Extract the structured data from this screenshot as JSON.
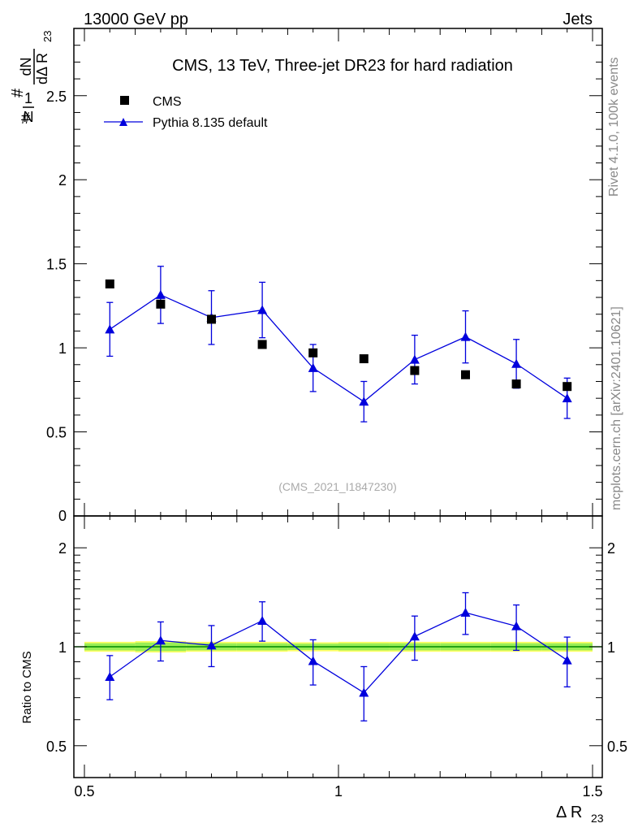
{
  "header": {
    "left": "13000 GeV pp",
    "right": "Jets"
  },
  "side_labels": {
    "rivet": "Rivet 4.1.0,  100k events",
    "mcplots": "mcplots.cern.ch [arXiv:2401.10621]"
  },
  "colors": {
    "mc": "#0000dd",
    "data": "#000000",
    "band_outer": "#ffff66",
    "band_inner": "#99ee55",
    "ref_line": "#008800"
  },
  "chart_data": [
    {
      "type": "scatter",
      "title": "CMS, 13 TeV, Three-jet DR23 for hard radiation",
      "ylabel": "#1/N #dN/dΔ R23",
      "ylabel_parts": {
        "num1": "1",
        "den1": "N",
        "num2": "dN",
        "den2": "dΔ R",
        "den2_sub": "23",
        "hash1": "#",
        "hash2": "#"
      },
      "analysis_label": "(CMS_2021_I1847230)",
      "xlim": [
        0.5,
        1.5
      ],
      "ylim": [
        0,
        2.9
      ],
      "yticks": [
        {
          "v": 0.5,
          "label": "0.5"
        },
        {
          "v": 1,
          "label": "1"
        },
        {
          "v": 1.5,
          "label": "1.5"
        },
        {
          "v": 2,
          "label": "2"
        },
        {
          "v": 2.5,
          "label": "2.5"
        }
      ],
      "legend": [
        {
          "key": "data",
          "label": "CMS"
        },
        {
          "key": "mc",
          "label": "Pythia 8.135 default"
        }
      ],
      "series": [
        {
          "name": "CMS",
          "key": "data",
          "marker": "square",
          "x": [
            0.55,
            0.65,
            0.75,
            0.85,
            0.95,
            1.05,
            1.15,
            1.25,
            1.35,
            1.45
          ],
          "y": [
            1.38,
            1.26,
            1.17,
            1.02,
            0.97,
            0.935,
            0.865,
            0.84,
            0.785,
            0.77
          ]
        },
        {
          "name": "Pythia 8.135 default",
          "key": "mc",
          "marker": "triangle",
          "x": [
            0.55,
            0.65,
            0.75,
            0.85,
            0.95,
            1.05,
            1.15,
            1.25,
            1.35,
            1.45
          ],
          "y": [
            1.11,
            1.315,
            1.18,
            1.225,
            0.88,
            0.68,
            0.93,
            1.065,
            0.905,
            0.7
          ],
          "yerr": [
            0.16,
            0.17,
            0.16,
            0.165,
            0.14,
            0.12,
            0.145,
            0.155,
            0.145,
            0.12
          ]
        }
      ]
    },
    {
      "type": "scatter",
      "title": "",
      "ylabel": "Ratio to CMS",
      "xlabel": "Δ R",
      "xlabel_sub": "23",
      "xlim": [
        0.5,
        1.5
      ],
      "ylog": true,
      "ylim": [
        0.4,
        2.5
      ],
      "yticks": [
        {
          "v": 0.5,
          "label": "0.5"
        },
        {
          "v": 1,
          "label": "1"
        },
        {
          "v": 2,
          "label": "2"
        }
      ],
      "xticks": [
        {
          "v": 0.5,
          "label": "0.5"
        },
        {
          "v": 1,
          "label": "1"
        },
        {
          "v": 1.5,
          "label": "1.5"
        }
      ],
      "bands": [
        {
          "x0": 0.5,
          "x1": 0.6,
          "lo": 0.975,
          "hi": 1.025
        },
        {
          "x0": 0.6,
          "x1": 0.7,
          "lo": 0.97,
          "hi": 1.03
        },
        {
          "x0": 0.7,
          "x1": 0.8,
          "lo": 0.975,
          "hi": 1.025
        },
        {
          "x0": 0.8,
          "x1": 0.9,
          "lo": 0.975,
          "hi": 1.025
        },
        {
          "x0": 0.9,
          "x1": 1.0,
          "lo": 0.978,
          "hi": 1.022
        },
        {
          "x0": 1.0,
          "x1": 1.1,
          "lo": 0.975,
          "hi": 1.025
        },
        {
          "x0": 1.1,
          "x1": 1.2,
          "lo": 0.975,
          "hi": 1.025
        },
        {
          "x0": 1.2,
          "x1": 1.3,
          "lo": 0.975,
          "hi": 1.025
        },
        {
          "x0": 1.3,
          "x1": 1.4,
          "lo": 0.975,
          "hi": 1.025
        },
        {
          "x0": 1.4,
          "x1": 1.5,
          "lo": 0.975,
          "hi": 1.025
        }
      ],
      "series": [
        {
          "name": "Pythia 8.135 default / CMS",
          "key": "mc",
          "marker": "triangle",
          "x": [
            0.55,
            0.65,
            0.75,
            0.85,
            0.95,
            1.05,
            1.15,
            1.25,
            1.35,
            1.45
          ],
          "y": [
            0.81,
            1.045,
            1.01,
            1.2,
            0.905,
            0.725,
            1.075,
            1.27,
            1.155,
            0.91
          ],
          "ylo": [
            0.69,
            0.905,
            0.87,
            1.04,
            0.765,
            0.595,
            0.91,
            1.09,
            0.975,
            0.755
          ],
          "yhi": [
            0.94,
            1.19,
            1.16,
            1.37,
            1.05,
            0.87,
            1.24,
            1.46,
            1.34,
            1.07
          ]
        }
      ]
    }
  ]
}
